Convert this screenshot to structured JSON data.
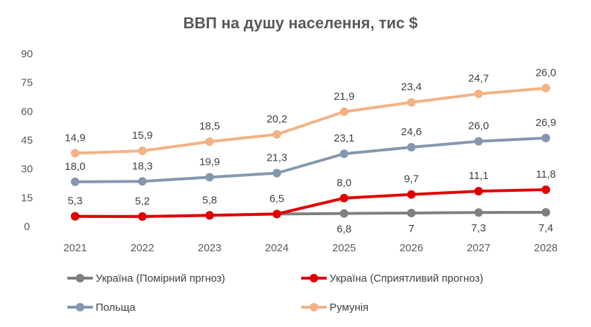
{
  "chart_data": {
    "type": "line",
    "stacked": true,
    "title": "ВВП на душу населення, тис $",
    "xlabel": "",
    "ylabel": "",
    "categories": [
      "2021",
      "2022",
      "2023",
      "2024",
      "2025",
      "2026",
      "2027",
      "2028"
    ],
    "ylim": [
      0,
      90
    ],
    "yticks": [
      "0",
      "15",
      "30",
      "45",
      "60",
      "75",
      "90"
    ],
    "grid": false,
    "legend_position": "bottom",
    "series": [
      {
        "name": "Україна (Помірний пргноз)",
        "color": "#7f7f7f",
        "values": [
          null,
          null,
          null,
          null,
          6.8,
          7,
          7.3,
          7.4
        ],
        "labels": [
          "",
          "",
          "",
          "",
          "6,8",
          "7",
          "7,3",
          "7,4"
        ],
        "label_pos": "below"
      },
      {
        "name": "Україна (Сприятливий прогноз)",
        "color": "#e00000",
        "values": [
          5.3,
          5.2,
          5.8,
          6.5,
          8.0,
          9.7,
          11.1,
          11.8
        ],
        "labels": [
          "5,3",
          "5,2",
          "5,8",
          "6,5",
          "8,0",
          "9,7",
          "11,1",
          "11,8"
        ],
        "label_pos": "above"
      },
      {
        "name": "Польща",
        "color": "#8497b0",
        "values": [
          18.0,
          18.3,
          19.9,
          21.3,
          23.1,
          24.6,
          26.0,
          26.9
        ],
        "labels": [
          "18,0",
          "18,3",
          "19,9",
          "21,3",
          "23,1",
          "24,6",
          "26,0",
          "26,9"
        ],
        "label_pos": "above"
      },
      {
        "name": "Румунія",
        "color": "#f4b183",
        "values": [
          14.9,
          15.9,
          18.5,
          20.2,
          21.9,
          23.4,
          24.7,
          26.0
        ],
        "labels": [
          "14,9",
          "15,9",
          "18,5",
          "20,2",
          "21,9",
          "23,4",
          "24,7",
          "26,0"
        ],
        "label_pos": "above"
      }
    ]
  }
}
